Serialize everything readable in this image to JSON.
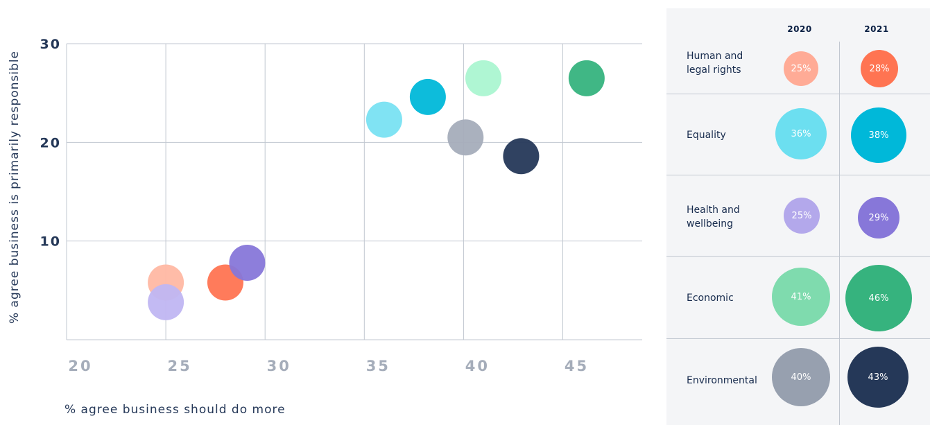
{
  "chart_data": [
    {
      "type": "scatter",
      "title": "",
      "xlabel": "% agree business should do more",
      "ylabel": "% agree business is primarily responsible",
      "xlim": [
        20,
        49
      ],
      "ylim": [
        0,
        30
      ],
      "x_ticks": [
        "20",
        "25",
        "30",
        "35",
        "40",
        "45"
      ],
      "y_ticks": [
        "10",
        "20",
        "30"
      ],
      "grid": true,
      "legend": "table on right",
      "points": [
        {
          "category": "Human and legal rights",
          "year": "2020",
          "x": 25.0,
          "y": 5.8,
          "color": "#FFB8A3"
        },
        {
          "category": "Human and legal rights",
          "year": "2021",
          "x": 28.0,
          "y": 5.8,
          "color": "#FF7452"
        },
        {
          "category": "Equality",
          "year": "2020",
          "x": 36.0,
          "y": 22.3,
          "color": "#79E2F2"
        },
        {
          "category": "Equality",
          "year": "2021",
          "x": 38.2,
          "y": 24.6,
          "color": "#00B8D9"
        },
        {
          "category": "Health and wellbeing",
          "year": "2020",
          "x": 25.0,
          "y": 3.8,
          "color": "#C0B6F2"
        },
        {
          "category": "Health and wellbeing",
          "year": "2021",
          "x": 29.1,
          "y": 7.8,
          "color": "#8777D9"
        },
        {
          "category": "Economic",
          "year": "2020",
          "x": 41.0,
          "y": 26.5,
          "color": "#ABF5D1"
        },
        {
          "category": "Economic",
          "year": "2021",
          "x": 46.2,
          "y": 26.5,
          "color": "#36B37E"
        },
        {
          "category": "Environmental",
          "year": "2020",
          "x": 40.1,
          "y": 20.5,
          "color": "#A5ADBA"
        },
        {
          "category": "Environmental",
          "year": "2021",
          "x": 42.9,
          "y": 18.6,
          "color": "#253858"
        }
      ]
    },
    {
      "type": "table",
      "columns": [
        "2020",
        "2021"
      ],
      "rows": [
        {
          "label": "Human and legal rights",
          "values": [
            "25%",
            "28%"
          ],
          "colors": [
            "#FFAB96",
            "#FF7452"
          ],
          "fractions": [
            0.25,
            0.28
          ]
        },
        {
          "label": "Equality",
          "values": [
            "36%",
            "38%"
          ],
          "colors": [
            "#6CDFF0",
            "#00B8D9"
          ],
          "fractions": [
            0.36,
            0.38
          ]
        },
        {
          "label": "Health and wellbeing",
          "values": [
            "25%",
            "29%"
          ],
          "colors": [
            "#B3A8EB",
            "#8777D9"
          ],
          "fractions": [
            0.25,
            0.29
          ]
        },
        {
          "label": "Economic",
          "values": [
            "41%",
            "46%"
          ],
          "colors": [
            "#7FDBAE",
            "#36B37E"
          ],
          "fractions": [
            0.41,
            0.46
          ]
        },
        {
          "label": "Environmental",
          "values": [
            "40%",
            "43%"
          ],
          "colors": [
            "#97A0AF",
            "#253858"
          ],
          "fractions": [
            0.4,
            0.43
          ]
        }
      ]
    }
  ],
  "table": {
    "col_2020": "2020",
    "col_2021": "2021",
    "rows": [
      {
        "label": "Human and legal rights",
        "v2020": "25%",
        "v2021": "28%"
      },
      {
        "label": "Equality",
        "v2020": "36%",
        "v2021": "38%"
      },
      {
        "label": "Health and wellbeing",
        "v2020": "25%",
        "v2021": "29%"
      },
      {
        "label": "Economic",
        "v2020": "41%",
        "v2021": "46%"
      },
      {
        "label": "Environmental",
        "v2020": "40%",
        "v2021": "43%"
      }
    ]
  },
  "axes": {
    "xlabel": "% agree business should do more",
    "ylabel": "% agree business is primarily responsible"
  }
}
